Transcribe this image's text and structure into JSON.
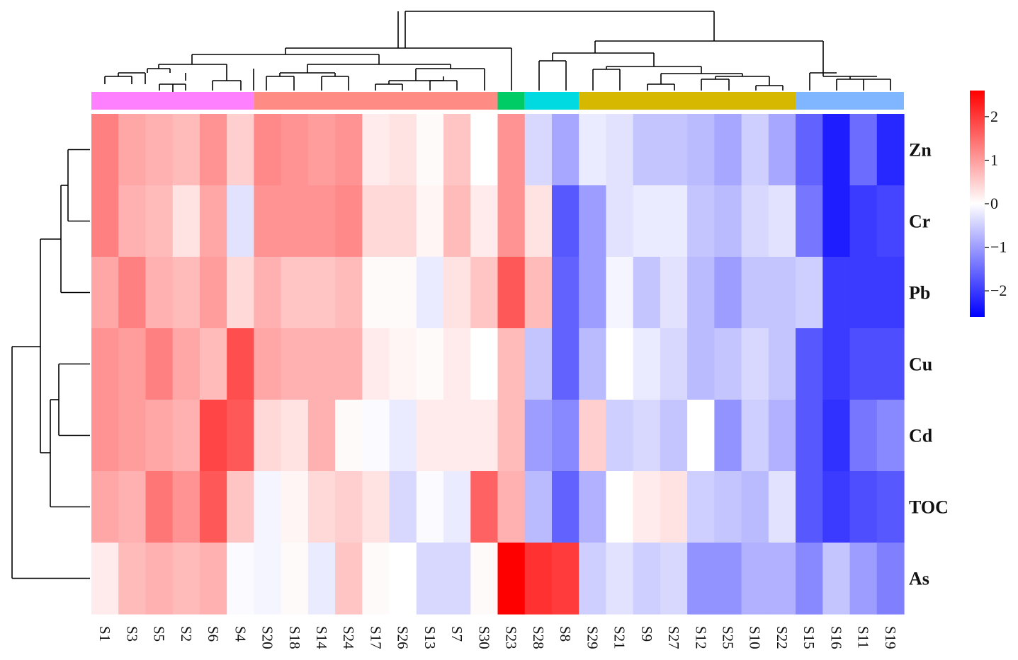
{
  "chart_data": {
    "type": "heatmap",
    "title": "",
    "columns": [
      "S1",
      "S3",
      "S5",
      "S2",
      "S6",
      "S4",
      "S20",
      "S18",
      "S14",
      "S24",
      "S17",
      "S26",
      "S13",
      "S7",
      "S30",
      "S23",
      "S28",
      "S8",
      "S29",
      "S21",
      "S9",
      "S27",
      "S12",
      "S25",
      "S10",
      "S22",
      "S15",
      "S16",
      "S11",
      "S19"
    ],
    "rows": [
      "Zn",
      "Cr",
      "Pb",
      "Cu",
      "Cd",
      "TOC",
      "As"
    ],
    "values": [
      [
        1.3,
        0.9,
        0.8,
        0.7,
        1.1,
        0.5,
        1.2,
        1.1,
        1.0,
        1.1,
        0.2,
        0.3,
        0.05,
        0.6,
        0.0,
        1.1,
        -0.4,
        -0.9,
        -0.2,
        -0.3,
        -0.6,
        -0.6,
        -0.7,
        -0.9,
        -0.5,
        -0.9,
        -1.6,
        -2.3,
        -1.5,
        -2.2
      ],
      [
        1.3,
        0.8,
        0.7,
        0.3,
        0.9,
        -0.3,
        1.1,
        1.1,
        1.1,
        1.2,
        0.4,
        0.4,
        0.1,
        0.7,
        0.2,
        1.1,
        0.3,
        -1.7,
        -1.0,
        -0.3,
        -0.2,
        -0.2,
        -0.6,
        -0.7,
        -0.4,
        -0.3,
        -1.4,
        -2.3,
        -2.0,
        -1.9
      ],
      [
        0.9,
        1.3,
        0.8,
        0.7,
        1.0,
        0.4,
        0.8,
        0.6,
        0.6,
        0.7,
        0.05,
        0.05,
        -0.2,
        0.3,
        0.6,
        1.7,
        0.7,
        -1.6,
        -1.0,
        -0.1,
        -0.6,
        -0.3,
        -0.7,
        -1.0,
        -0.6,
        -0.6,
        -0.5,
        -2.0,
        -2.0,
        -2.0
      ],
      [
        1.1,
        1.0,
        1.3,
        0.9,
        0.7,
        1.8,
        0.9,
        0.8,
        0.8,
        0.8,
        0.2,
        0.1,
        0.05,
        0.2,
        0.0,
        0.7,
        -0.6,
        -1.6,
        -0.7,
        0.0,
        -0.2,
        -0.4,
        -0.7,
        -0.6,
        -0.4,
        -0.6,
        -1.7,
        -2.0,
        -1.8,
        -1.8
      ],
      [
        1.1,
        1.0,
        0.9,
        0.8,
        1.9,
        1.7,
        0.4,
        0.3,
        0.8,
        0.05,
        -0.05,
        -0.2,
        0.2,
        0.2,
        0.2,
        0.7,
        -1.0,
        -1.2,
        0.5,
        -0.5,
        -0.4,
        -0.6,
        0.0,
        -1.1,
        -0.5,
        -0.8,
        -1.7,
        -2.1,
        -1.4,
        -1.2
      ],
      [
        0.9,
        0.8,
        1.4,
        1.1,
        1.7,
        0.6,
        -0.1,
        0.1,
        0.4,
        0.5,
        0.3,
        -0.4,
        -0.05,
        -0.2,
        1.6,
        0.8,
        -0.7,
        -1.6,
        -0.8,
        0.0,
        0.2,
        0.3,
        -0.5,
        -0.6,
        -0.7,
        -0.3,
        -1.7,
        -2.0,
        -1.8,
        -1.7
      ],
      [
        0.2,
        0.7,
        0.8,
        0.7,
        0.8,
        -0.05,
        -0.1,
        0.05,
        -0.2,
        0.6,
        0.05,
        0.0,
        -0.4,
        -0.4,
        0.05,
        2.6,
        2.1,
        2.0,
        -0.5,
        -0.3,
        -0.5,
        -0.4,
        -1.1,
        -1.1,
        -0.8,
        -0.8,
        -1.2,
        -0.6,
        -1.0,
        -1.3
      ]
    ],
    "column_groups": [
      {
        "size": 6,
        "color": "#ff80ff"
      },
      {
        "size": 9,
        "color": "#ff8c84"
      },
      {
        "size": 1,
        "color": "#00cc66"
      },
      {
        "size": 2,
        "color": "#00dae0"
      },
      {
        "size": 8,
        "color": "#d6b800"
      },
      {
        "size": 4,
        "color": "#80b5ff"
      }
    ],
    "colorbar": {
      "min": -2.6,
      "max": 2.6,
      "ticks": [
        2,
        1,
        0,
        -1,
        -2
      ],
      "tick_labels": [
        "2",
        "1",
        "0",
        "−1",
        "−2"
      ],
      "colors": {
        "low": "#0000ff",
        "mid": "#ffffff",
        "high": "#ff0000"
      }
    }
  }
}
